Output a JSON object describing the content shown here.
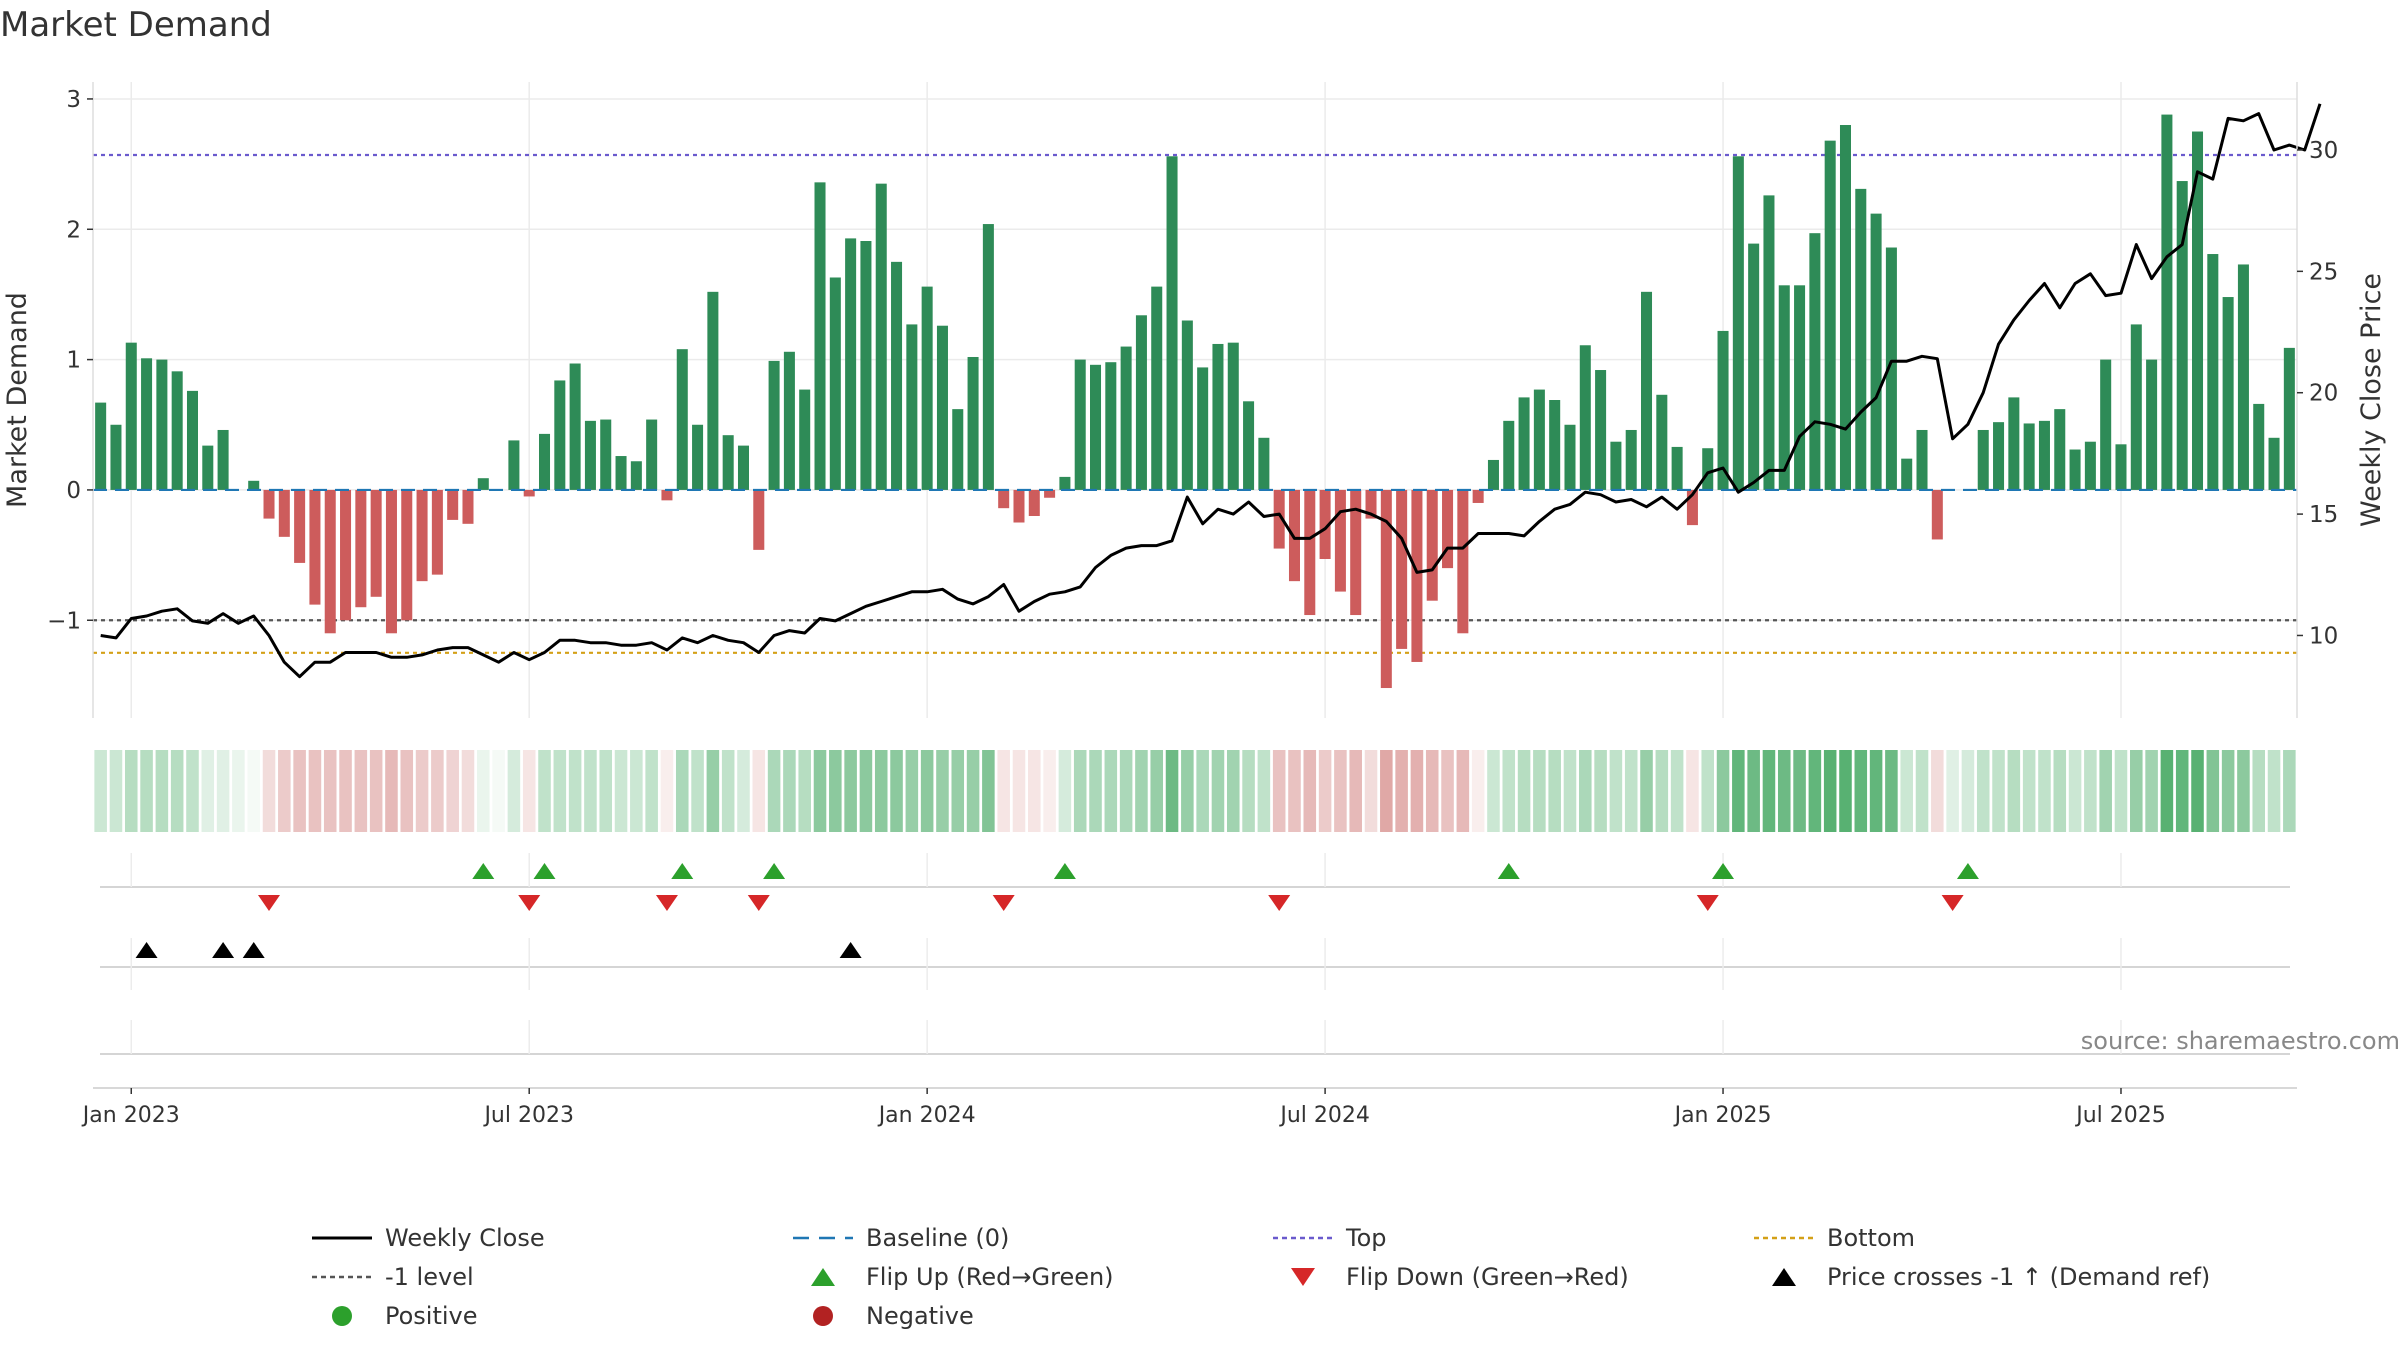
{
  "chart_data": {
    "type": "bar",
    "title": "Market Demand",
    "ylabel": "Market Demand",
    "y2label": "Weekly Close Price",
    "ylim": [
      -1.75,
      3.0
    ],
    "y2lim": [
      6.6,
      32.8
    ],
    "yticks": [
      "−1",
      "0",
      "1",
      "2",
      "3"
    ],
    "ytick_values": [
      -1,
      0,
      1,
      2,
      3
    ],
    "y2ticks": [
      "10",
      "15",
      "20",
      "25",
      "30"
    ],
    "y2tick_values": [
      10,
      15,
      20,
      25,
      30
    ],
    "x_labels": [
      "Jan 2023",
      "Jul 2023",
      "Jan 2024",
      "Jul 2024",
      "Jan 2025",
      "Jul 2025"
    ],
    "x_label_weeks": [
      0,
      26,
      52,
      78,
      104,
      130
    ],
    "start_week": -2,
    "top_level": 2.57,
    "bottom_level": -1.25,
    "minus_one_level": -1,
    "baseline": 0,
    "demand": [
      0.67,
      0.5,
      1.13,
      1.01,
      1.0,
      0.91,
      0.76,
      0.34,
      0.46,
      0,
      0.07,
      -0.22,
      -0.36,
      -0.56,
      -0.88,
      -1.1,
      -1.0,
      -0.9,
      -0.82,
      -1.1,
      -1.0,
      -0.7,
      -0.65,
      -0.23,
      -0.26,
      0.09,
      0,
      0.38,
      -0.05,
      0.43,
      0.84,
      0.97,
      0.53,
      0.54,
      0.26,
      0.22,
      0.54,
      -0.08,
      1.08,
      0.5,
      1.52,
      0.42,
      0.34,
      -0.46,
      0.99,
      1.06,
      0.77,
      2.36,
      1.63,
      1.93,
      1.91,
      2.35,
      1.75,
      1.27,
      1.56,
      1.26,
      0.62,
      1.02,
      2.04,
      -0.14,
      -0.25,
      -0.2,
      -0.06,
      0.1,
      1.0,
      0.96,
      0.98,
      1.1,
      1.34,
      1.56,
      2.56,
      1.3,
      0.94,
      1.12,
      1.13,
      0.68,
      0.4,
      -0.45,
      -0.7,
      -0.96,
      -0.53,
      -0.78,
      -0.96,
      -0.22,
      -1.52,
      -1.22,
      -1.32,
      -0.85,
      -0.6,
      -1.1,
      -0.1,
      0.23,
      0.53,
      0.71,
      0.77,
      0.69,
      0.5,
      1.11,
      0.92,
      0.37,
      0.46,
      1.52,
      0.73,
      0.33,
      -0.27,
      0.32,
      1.22,
      2.56,
      1.89,
      2.26,
      1.57,
      1.57,
      1.97,
      2.68,
      2.8,
      2.31,
      2.12,
      1.86,
      0.24,
      0.46,
      -0.38,
      0,
      0,
      0.46,
      0.52,
      0.71,
      0.51,
      0.53,
      0.62,
      0.31,
      0.37,
      1.0,
      0.35,
      1.27,
      1.0,
      2.88,
      2.37,
      2.75,
      1.81,
      1.48,
      1.73,
      0.66,
      0.4,
      1.09
    ],
    "close": [
      10.0,
      9.9,
      10.7,
      10.8,
      11.0,
      11.1,
      10.6,
      10.5,
      10.9,
      10.5,
      10.8,
      10.0,
      8.9,
      8.3,
      8.9,
      8.9,
      9.3,
      9.3,
      9.3,
      9.1,
      9.1,
      9.2,
      9.4,
      9.5,
      9.5,
      9.2,
      8.9,
      9.3,
      9.0,
      9.3,
      9.8,
      9.8,
      9.7,
      9.7,
      9.6,
      9.6,
      9.7,
      9.4,
      9.9,
      9.7,
      10.0,
      9.8,
      9.7,
      9.3,
      10.0,
      10.2,
      10.1,
      10.7,
      10.6,
      10.9,
      11.2,
      11.4,
      11.6,
      11.8,
      11.8,
      11.9,
      11.5,
      11.3,
      11.6,
      12.1,
      11.0,
      11.4,
      11.7,
      11.8,
      12.0,
      12.8,
      13.3,
      13.6,
      13.7,
      13.7,
      13.9,
      15.7,
      14.6,
      15.2,
      15.0,
      15.5,
      14.9,
      15.0,
      14.0,
      14.0,
      14.4,
      15.1,
      15.2,
      15.0,
      14.7,
      14.0,
      12.6,
      12.7,
      13.6,
      13.6,
      14.2,
      14.2,
      14.2,
      14.1,
      14.7,
      15.2,
      15.4,
      15.9,
      15.8,
      15.5,
      15.6,
      15.3,
      15.7,
      15.2,
      15.8,
      16.7,
      16.9,
      15.9,
      16.3,
      16.8,
      16.8,
      18.2,
      18.8,
      18.7,
      18.5,
      19.2,
      19.8,
      21.3,
      21.3,
      21.5,
      21.4,
      18.1,
      18.7,
      20.0,
      22.0,
      23.0,
      23.8,
      24.5,
      23.5,
      24.5,
      24.9,
      24.0,
      24.1,
      26.1,
      24.7,
      25.6,
      26.1,
      29.1,
      28.8,
      31.3,
      31.2,
      31.5,
      30.0,
      30.2,
      30.0,
      31.9
    ],
    "heat_strength": [
      0.25,
      0.25,
      0.35,
      0.35,
      0.35,
      0.35,
      0.3,
      0.15,
      0.15,
      0.1,
      0.05,
      0.2,
      0.3,
      0.35,
      0.35,
      0.35,
      0.35,
      0.35,
      0.35,
      0.4,
      0.35,
      0.3,
      0.3,
      0.25,
      0.2,
      0.1,
      0.05,
      0.2,
      0.15,
      0.3,
      0.3,
      0.3,
      0.3,
      0.3,
      0.25,
      0.25,
      0.3,
      0.1,
      0.4,
      0.3,
      0.5,
      0.3,
      0.2,
      0.15,
      0.4,
      0.4,
      0.35,
      0.55,
      0.55,
      0.55,
      0.55,
      0.55,
      0.55,
      0.5,
      0.55,
      0.5,
      0.5,
      0.5,
      0.6,
      0.15,
      0.15,
      0.15,
      0.1,
      0.2,
      0.4,
      0.4,
      0.4,
      0.4,
      0.45,
      0.5,
      0.7,
      0.5,
      0.4,
      0.45,
      0.45,
      0.35,
      0.3,
      0.35,
      0.35,
      0.4,
      0.3,
      0.35,
      0.4,
      0.2,
      0.5,
      0.45,
      0.45,
      0.4,
      0.35,
      0.4,
      0.1,
      0.25,
      0.3,
      0.35,
      0.35,
      0.35,
      0.3,
      0.4,
      0.35,
      0.3,
      0.3,
      0.5,
      0.35,
      0.3,
      0.15,
      0.3,
      0.55,
      0.75,
      0.7,
      0.75,
      0.7,
      0.7,
      0.75,
      0.8,
      0.8,
      0.75,
      0.75,
      0.7,
      0.25,
      0.3,
      0.2,
      0.15,
      0.2,
      0.3,
      0.3,
      0.35,
      0.3,
      0.3,
      0.35,
      0.25,
      0.3,
      0.45,
      0.3,
      0.5,
      0.45,
      0.8,
      0.75,
      0.8,
      0.6,
      0.55,
      0.55,
      0.35,
      0.3,
      0.4
    ],
    "flip_up_weeks": [
      23,
      27,
      36,
      42,
      61,
      90,
      104,
      120
    ],
    "flip_down_weeks": [
      9,
      26,
      35,
      41,
      57,
      75,
      103,
      119
    ],
    "price_cross_weeks": [
      1,
      6,
      8,
      47
    ],
    "legend": [
      "Weekly Close",
      "Baseline (0)",
      "Top",
      "Bottom",
      "-1 level",
      "Flip Up (Red→Green)",
      "Flip Down (Green→Red)",
      "Price crosses -1 ↑ (Demand ref)",
      "Positive",
      "Negative"
    ],
    "legend_position": "bottom",
    "colors": {
      "positive": "#2e8b57",
      "negative": "#cd5c5c",
      "close": "#000000",
      "baseline": "#1f77b4",
      "top": "#6a5acd",
      "bottom": "#d4a017",
      "minus_one": "#555555",
      "flip_up": "#2ca02c",
      "flip_down": "#d62728",
      "cross": "#000000",
      "legend_positive": "#2ca02c",
      "legend_negative": "#b22222",
      "grid": "#ebebeb",
      "text": "#333333",
      "source": "#888888"
    },
    "source": "source: sharemaestro.com"
  }
}
